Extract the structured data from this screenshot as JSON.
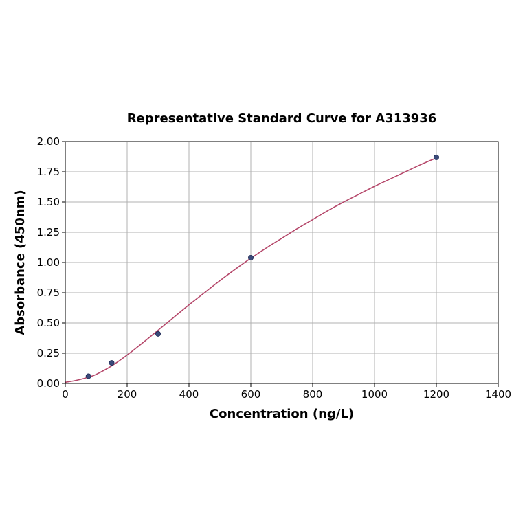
{
  "chart_data": {
    "type": "scatter",
    "title": "Representative Standard Curve for A313936",
    "xlabel": "Concentration (ng/L)",
    "ylabel": "Absorbance (450nm)",
    "xlim": [
      0,
      1400
    ],
    "ylim": [
      0,
      2.0
    ],
    "xticks": [
      0,
      200,
      400,
      600,
      800,
      1000,
      1200,
      1400
    ],
    "xtick_labels": [
      "0",
      "200",
      "400",
      "600",
      "800",
      "1000",
      "1200",
      "1400"
    ],
    "yticks": [
      0,
      0.25,
      0.5,
      0.75,
      1.0,
      1.25,
      1.5,
      1.75,
      2.0
    ],
    "ytick_labels": [
      "0.00",
      "0.25",
      "0.50",
      "0.75",
      "1.00",
      "1.25",
      "1.50",
      "1.75",
      "2.00"
    ],
    "grid": true,
    "series": [
      {
        "type": "scatter",
        "x": [
          75,
          150,
          300,
          600,
          1200
        ],
        "y": [
          0.06,
          0.17,
          0.41,
          1.04,
          1.87
        ],
        "color": "#3a4a7a"
      },
      {
        "type": "line",
        "fit": "4PL",
        "x": [
          0,
          25,
          50,
          75,
          100,
          150,
          200,
          250,
          300,
          350,
          400,
          450,
          500,
          550,
          600,
          650,
          700,
          750,
          800,
          850,
          900,
          950,
          1000,
          1050,
          1100,
          1150,
          1200
        ],
        "y": [
          0.01,
          0.02,
          0.034,
          0.052,
          0.075,
          0.145,
          0.235,
          0.335,
          0.44,
          0.545,
          0.65,
          0.75,
          0.85,
          0.945,
          1.035,
          1.12,
          1.2,
          1.28,
          1.355,
          1.43,
          1.5,
          1.565,
          1.63,
          1.69,
          1.75,
          1.81,
          1.865
        ],
        "color": "#b5476a"
      }
    ]
  }
}
